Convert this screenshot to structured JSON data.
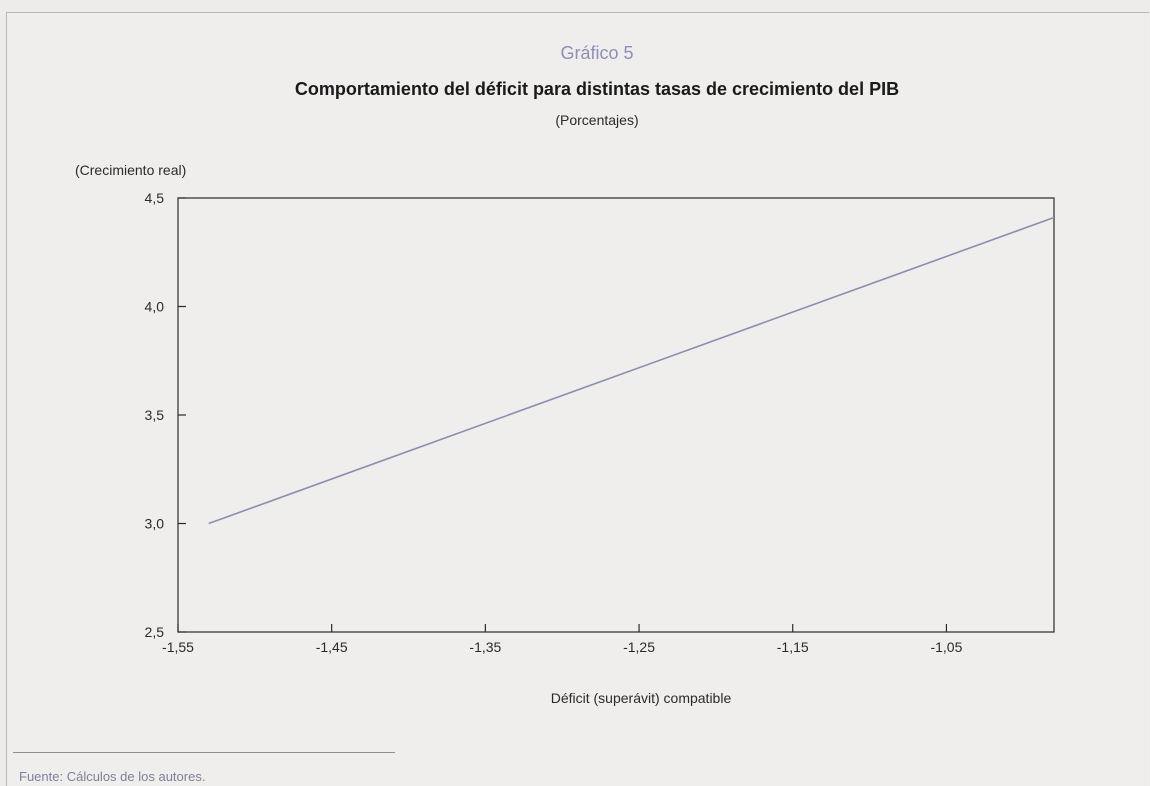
{
  "source": "Fuente: Cálculos de los autores.",
  "colors": {
    "line": "#8c8db0",
    "axes": "#2a2a2a",
    "subtitle_accent": "#8e8fbb"
  },
  "chart_data": {
    "type": "line",
    "supertitle": "Gráfico 5",
    "title": "Comportamiento del déficit para distintas tasas de crecimiento del PIB",
    "subtitle": "(Porcentajes)",
    "xlabel": "Déficit (superávit) compatible",
    "ylabel": "(Crecimiento real)",
    "xlim": [
      -1.55,
      -0.98
    ],
    "ylim": [
      2.5,
      4.5
    ],
    "xticks": [
      {
        "value": -1.55,
        "label": "-1,55"
      },
      {
        "value": -1.45,
        "label": "-1,45"
      },
      {
        "value": -1.35,
        "label": "-1,35"
      },
      {
        "value": -1.25,
        "label": "-1,25"
      },
      {
        "value": -1.15,
        "label": "-1,15"
      },
      {
        "value": -1.05,
        "label": "-1,05"
      }
    ],
    "yticks": [
      {
        "value": 2.5,
        "label": "2,5"
      },
      {
        "value": 3.0,
        "label": "3,0"
      },
      {
        "value": 3.5,
        "label": "3,5"
      },
      {
        "value": 4.0,
        "label": "4,0"
      },
      {
        "value": 4.5,
        "label": "4,5"
      }
    ],
    "grid": false,
    "legend": "none",
    "series": [
      {
        "x": [
          -1.53,
          -0.98
        ],
        "y": [
          3.0,
          4.41
        ]
      }
    ]
  }
}
